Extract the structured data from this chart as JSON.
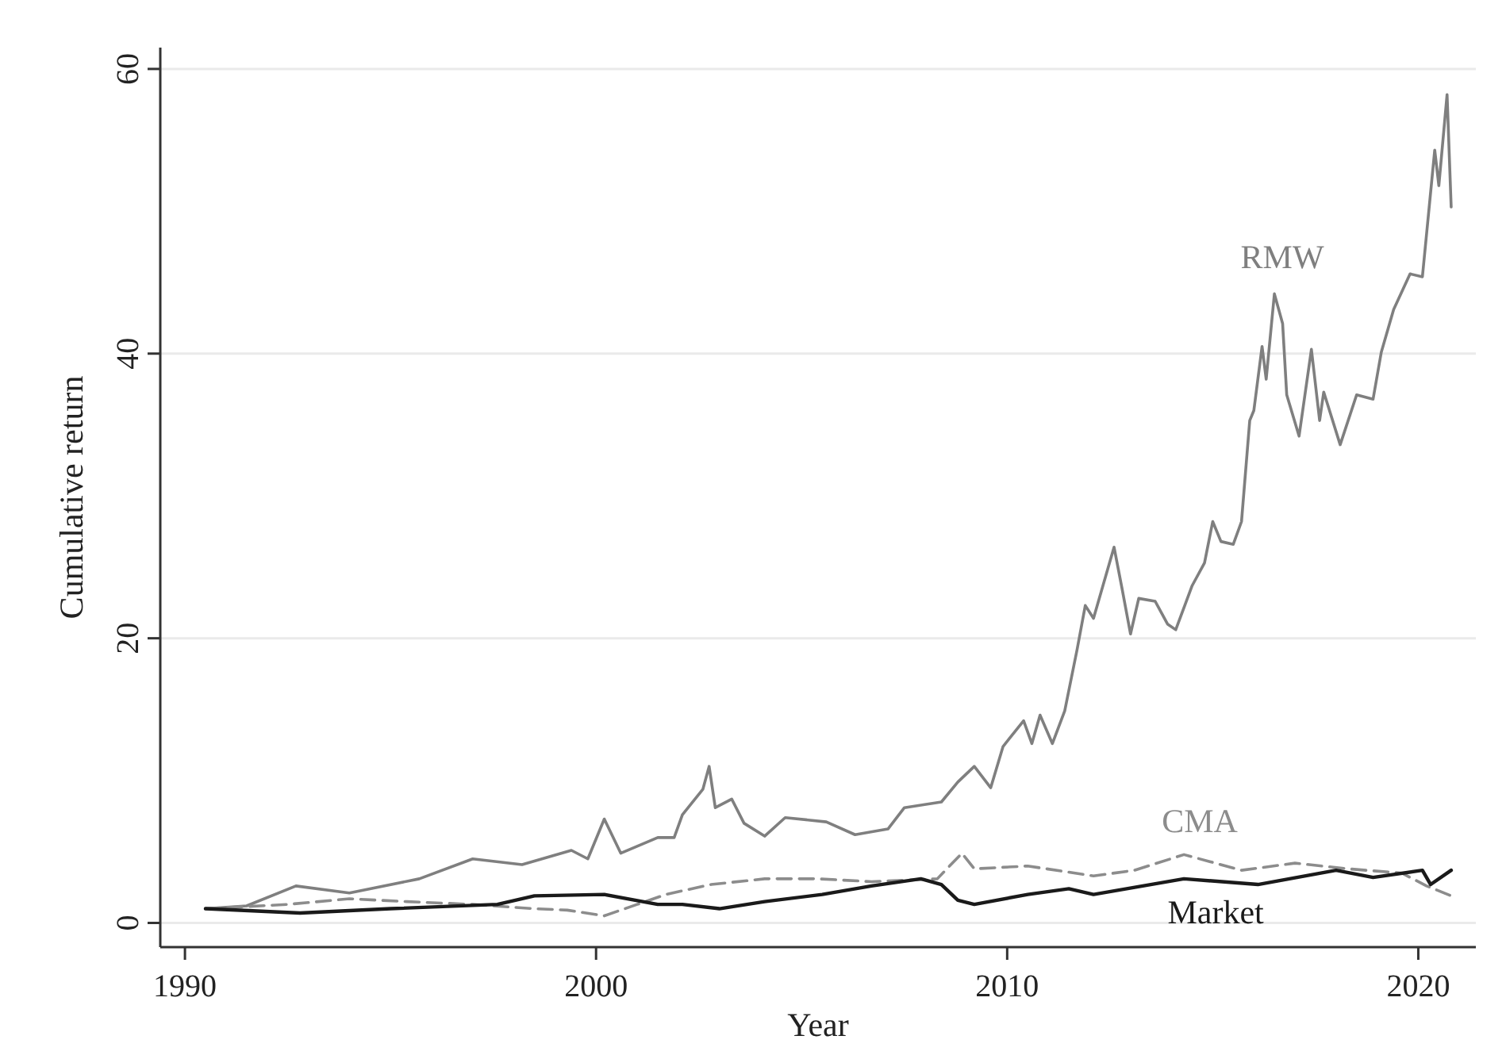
{
  "chart_data": {
    "type": "line",
    "xlabel": "Year",
    "ylabel": "Cumulative return",
    "xlim": [
      1989.4,
      2021.4
    ],
    "ylim": [
      -1.7,
      61.5
    ],
    "xticks": [
      1990,
      2000,
      2010,
      2020
    ],
    "yticks": [
      0,
      20,
      40,
      60
    ],
    "grid": "y",
    "marker": "none",
    "series": [
      {
        "name": "RMW",
        "color": "#7f7f7f",
        "line_style": "solid",
        "x": [
          1990.5,
          1991.5,
          1992.7,
          1994.0,
          1995.7,
          1997.0,
          1998.2,
          1999.4,
          1999.8,
          2000.2,
          2000.6,
          2001.5,
          2001.9,
          2002.1,
          2002.6,
          2002.75,
          2002.9,
          2003.3,
          2003.6,
          2004.1,
          2004.6,
          2005.6,
          2006.3,
          2007.1,
          2007.5,
          2008.4,
          2008.8,
          2009.2,
          2009.6,
          2009.9,
          2010.4,
          2010.6,
          2010.8,
          2011.1,
          2011.4,
          2011.7,
          2011.9,
          2012.1,
          2012.6,
          2012.8,
          2013.0,
          2013.2,
          2013.6,
          2013.9,
          2014.1,
          2014.5,
          2014.8,
          2015.0,
          2015.2,
          2015.5,
          2015.7,
          2015.9,
          2016.0,
          2016.2,
          2016.3,
          2016.5,
          2016.7,
          2016.8,
          2017.1,
          2017.4,
          2017.6,
          2017.7,
          2018.1,
          2018.5,
          2018.9,
          2019.1,
          2019.4,
          2019.8,
          2020.1,
          2020.4,
          2020.5,
          2020.7,
          2020.8
        ],
        "values": [
          1.0,
          1.2,
          2.6,
          2.1,
          3.1,
          4.5,
          4.1,
          5.1,
          4.5,
          7.3,
          4.9,
          6.0,
          6.0,
          7.6,
          9.4,
          11.0,
          8.1,
          8.7,
          7.0,
          6.1,
          7.4,
          7.1,
          6.2,
          6.6,
          8.1,
          8.5,
          9.9,
          11.0,
          9.5,
          12.4,
          14.2,
          12.6,
          14.6,
          12.6,
          14.9,
          19.2,
          22.3,
          21.4,
          26.4,
          23.4,
          20.3,
          22.8,
          22.6,
          21.0,
          20.6,
          23.7,
          25.3,
          28.2,
          26.8,
          26.6,
          28.2,
          35.3,
          36.0,
          40.5,
          38.2,
          44.2,
          42.1,
          37.1,
          34.2,
          40.3,
          35.3,
          37.3,
          33.6,
          37.1,
          36.8,
          40.1,
          43.1,
          45.6,
          45.4,
          54.3,
          51.8,
          58.2,
          50.3
        ]
      },
      {
        "name": "CMA",
        "color": "#8c8c8c",
        "line_style": "dashed",
        "x": [
          1990.5,
          1992.5,
          1994.0,
          1995.4,
          1997.0,
          1998.5,
          1999.3,
          2000.2,
          2001.0,
          2001.7,
          2002.8,
          2004.1,
          2005.4,
          2006.7,
          2008.3,
          2008.9,
          2009.2,
          2010.5,
          2012.1,
          2013.1,
          2014.3,
          2015.7,
          2017.0,
          2018.3,
          2019.6,
          2020.2,
          2020.8
        ],
        "values": [
          1.0,
          1.3,
          1.7,
          1.5,
          1.3,
          1.0,
          0.9,
          0.5,
          1.3,
          2.0,
          2.7,
          3.1,
          3.1,
          2.9,
          3.1,
          4.9,
          3.8,
          4.0,
          3.3,
          3.7,
          4.8,
          3.7,
          4.2,
          3.8,
          3.5,
          2.6,
          1.9
        ]
      },
      {
        "name": "Market",
        "color": "#1a1a1a",
        "line_style": "solid",
        "x": [
          1990.5,
          1992.8,
          1995.0,
          1997.6,
          1998.5,
          2000.2,
          2001.5,
          2002.1,
          2003.0,
          2004.1,
          2005.5,
          2006.7,
          2007.9,
          2008.4,
          2008.8,
          2009.2,
          2010.5,
          2011.5,
          2012.1,
          2014.3,
          2016.1,
          2018.0,
          2018.9,
          2020.1,
          2020.3,
          2020.8
        ],
        "values": [
          1.0,
          0.7,
          1.0,
          1.3,
          1.9,
          2.0,
          1.3,
          1.3,
          1.0,
          1.5,
          2.0,
          2.6,
          3.1,
          2.7,
          1.6,
          1.3,
          2.0,
          2.4,
          2.0,
          3.1,
          2.7,
          3.7,
          3.2,
          3.7,
          2.7,
          3.7
        ]
      }
    ]
  }
}
